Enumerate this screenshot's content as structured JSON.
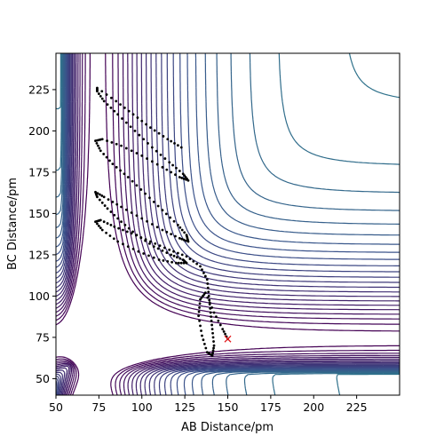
{
  "chart_data": {
    "type": "contour",
    "title": "",
    "xlabel": "AB Distance/pm",
    "ylabel": "BC Distance/pm",
    "xlim": [
      50,
      250
    ],
    "ylim": [
      40,
      247
    ],
    "x_ticks": [
      50,
      75,
      100,
      125,
      150,
      175,
      200,
      225
    ],
    "y_ticks": [
      50,
      75,
      100,
      125,
      150,
      175,
      200,
      225
    ],
    "grid": false,
    "colormap": "viridis",
    "surface": "LEPS potential energy surface for A + BC",
    "trajectory": {
      "color": "#000000",
      "points": [
        [
          123,
          190
        ],
        [
          115,
          195
        ],
        [
          105,
          202
        ],
        [
          95,
          210
        ],
        [
          85,
          218
        ],
        [
          74,
          226
        ],
        [
          74,
          224
        ],
        [
          78,
          218
        ],
        [
          86,
          210
        ],
        [
          96,
          200
        ],
        [
          106,
          190
        ],
        [
          116,
          181
        ],
        [
          124,
          174
        ],
        [
          127,
          170
        ],
        [
          122,
          172
        ],
        [
          112,
          178
        ],
        [
          100,
          185
        ],
        [
          88,
          191
        ],
        [
          77,
          195
        ],
        [
          73,
          194
        ],
        [
          76,
          188
        ],
        [
          83,
          180
        ],
        [
          92,
          172
        ],
        [
          102,
          162
        ],
        [
          112,
          152
        ],
        [
          121,
          143
        ],
        [
          126,
          137
        ],
        [
          127,
          133
        ],
        [
          122,
          135
        ],
        [
          112,
          140
        ],
        [
          100,
          147
        ],
        [
          88,
          154
        ],
        [
          78,
          160
        ],
        [
          73,
          163
        ],
        [
          74,
          160
        ],
        [
          80,
          153
        ],
        [
          88,
          145
        ],
        [
          97,
          137
        ],
        [
          107,
          130
        ],
        [
          117,
          125
        ],
        [
          124,
          122
        ],
        [
          126,
          120
        ],
        [
          120,
          120
        ],
        [
          110,
          122
        ],
        [
          98,
          127
        ],
        [
          86,
          133
        ],
        [
          77,
          140
        ],
        [
          73,
          145
        ],
        [
          76,
          146
        ],
        [
          84,
          142
        ],
        [
          94,
          138
        ],
        [
          105,
          133
        ],
        [
          116,
          128
        ],
        [
          126,
          124
        ],
        [
          134,
          118
        ],
        [
          138,
          110
        ],
        [
          139,
          100
        ],
        [
          140,
          90
        ],
        [
          141,
          80
        ],
        [
          142,
          70
        ],
        [
          141,
          64
        ],
        [
          138,
          66
        ],
        [
          135,
          76
        ],
        [
          133,
          88
        ],
        [
          134,
          98
        ],
        [
          137,
          102
        ],
        [
          142,
          90
        ],
        [
          147,
          80
        ],
        [
          150,
          74
        ]
      ]
    },
    "end_marker": {
      "x": 150,
      "y": 74,
      "symbol": "x",
      "color": "#e41a1c"
    }
  }
}
